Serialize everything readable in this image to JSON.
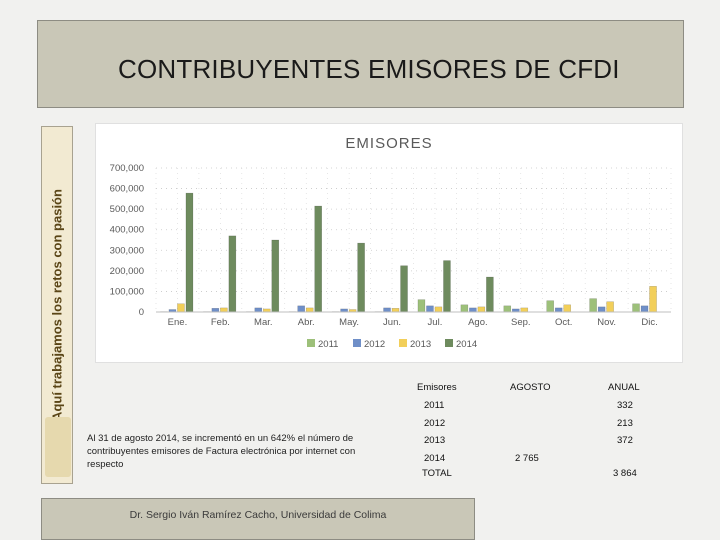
{
  "title": "CONTRIBUYENTES EMISORES DE CFDI",
  "banner": {
    "text": "Aquí   trabajamos los retos con pasión",
    "logo": "colima-logo",
    "aqui_word": "Aquí"
  },
  "chart_data": {
    "type": "bar",
    "title": "EMISORES",
    "categories": [
      "Ene.",
      "Feb.",
      "Mar.",
      "Abr.",
      "May.",
      "Jun.",
      "Jul.",
      "Ago.",
      "Sep.",
      "Oct.",
      "Nov.",
      "Dic."
    ],
    "series": [
      {
        "name": "2011",
        "color": "#9dc07a",
        "values": [
          2000,
          2000,
          2000,
          2000,
          2000,
          2000,
          60000,
          35000,
          30000,
          55000,
          65000,
          40000
        ]
      },
      {
        "name": "2012",
        "color": "#6f8fc8",
        "values": [
          12000,
          18000,
          20000,
          30000,
          15000,
          20000,
          30000,
          20000,
          15000,
          20000,
          25000,
          30000
        ]
      },
      {
        "name": "2013",
        "color": "#f2cf5a",
        "values": [
          40000,
          20000,
          15000,
          20000,
          12000,
          18000,
          25000,
          25000,
          20000,
          35000,
          50000,
          125000
        ]
      },
      {
        "name": "2014",
        "color": "#6e8b5e",
        "values": [
          578000,
          370000,
          350000,
          515000,
          335000,
          225000,
          250000,
          170000,
          0,
          0,
          0,
          0
        ]
      }
    ],
    "ylim": [
      0,
      700000
    ],
    "yticks": [
      "0",
      "100,000",
      "200,000",
      "300,000",
      "400,000",
      "500,000",
      "600,000",
      "700,000"
    ],
    "ytick_values": [
      0,
      100000,
      200000,
      300000,
      400000,
      500000,
      600000,
      700000
    ],
    "legend_position": "bottom"
  },
  "note": "Al 31 de agosto 2014, se incrementó en un 642% el número de contribuyentes emisores de Factura electrónica por internet con respecto",
  "table": {
    "headers": [
      "Emisores",
      "AGOSTO",
      "ANUAL"
    ],
    "rows": [
      {
        "year": "2011",
        "agosto": "",
        "anual": "332"
      },
      {
        "year": "2012",
        "agosto": "",
        "anual": "213"
      },
      {
        "year": "2013",
        "agosto": "",
        "anual": "372"
      },
      {
        "year": "2014",
        "agosto": "2 765",
        "anual": ""
      },
      {
        "year": "TOTAL",
        "agosto": "",
        "anual": "3 864"
      }
    ]
  },
  "footer": "Dr. Sergio Iván Ramírez Cacho, Universidad de Colima"
}
